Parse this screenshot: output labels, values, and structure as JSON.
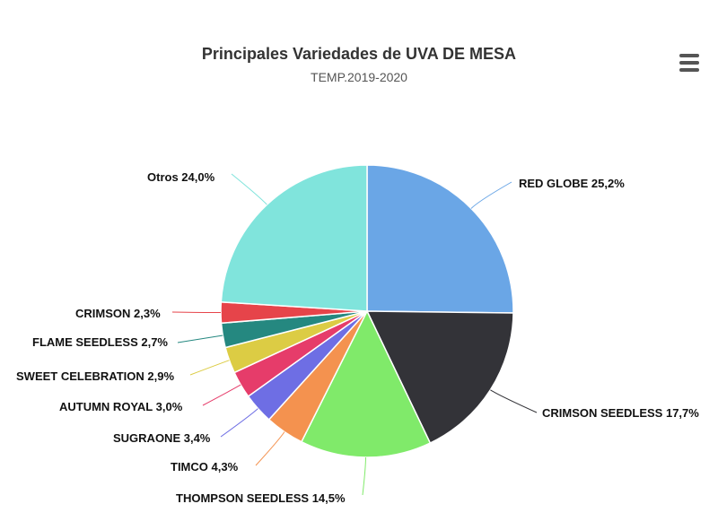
{
  "chart_data": {
    "type": "pie",
    "title": "Principales Variedades de UVA DE MESA",
    "subtitle": "TEMP.2019-2020",
    "slices": [
      {
        "label": "RED GLOBE 25,2%",
        "value": 25.2,
        "color": "#6aa6e6"
      },
      {
        "label": "CRIMSON SEEDLESS 17,7%",
        "value": 17.7,
        "color": "#333338"
      },
      {
        "label": "THOMPSON SEEDLESS 14,5%",
        "value": 14.5,
        "color": "#80ea6a"
      },
      {
        "label": "TIMCO 4,3%",
        "value": 4.3,
        "color": "#f4924f"
      },
      {
        "label": "SUGRAONE 3,4%",
        "value": 3.4,
        "color": "#6e6ee4"
      },
      {
        "label": "AUTUMN ROYAL 3,0%",
        "value": 3.0,
        "color": "#e63c6a"
      },
      {
        "label": "SWEET CELEBRATION 2,9%",
        "value": 2.9,
        "color": "#dccc44"
      },
      {
        "label": "FLAME SEEDLESS 2,7%",
        "value": 2.7,
        "color": "#258880"
      },
      {
        "label": "CRIMSON 2,3%",
        "value": 2.3,
        "color": "#e6444a"
      },
      {
        "label": "Otros 24,0%",
        "value": 24.0,
        "color": "#80e4dc"
      }
    ]
  },
  "toolbar": {
    "menu_icon": "hamburger-menu-icon"
  }
}
